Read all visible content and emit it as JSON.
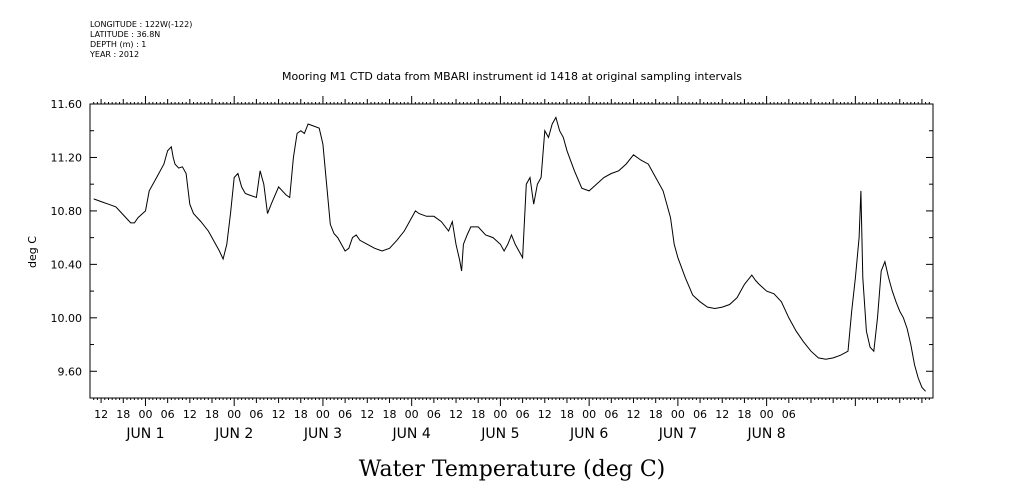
{
  "header": {
    "lines": [
      "LONGITUDE : 122W(-122)",
      "LATITUDE : 36.8N",
      "DEPTH (m) : 1",
      "YEAR : 2012"
    ]
  },
  "chart_data": {
    "type": "line",
    "title": "Mooring M1 CTD data from MBARI instrument id 1418 at original sampling intervals",
    "xlabel": "Water Temperature (deg C)",
    "ylabel": "deg C",
    "ylim": [
      9.4,
      11.6
    ],
    "yticks": [
      "11.60",
      "11.20",
      "10.80",
      "10.40",
      "10.00",
      "9.60"
    ],
    "x_hour_labels": [
      "12",
      "18",
      "00",
      "06",
      "12",
      "18",
      "00",
      "06",
      "12",
      "18",
      "00",
      "06",
      "12",
      "18",
      "00",
      "06",
      "12",
      "18",
      "00",
      "06",
      "12",
      "18",
      "00",
      "06",
      "12",
      "18",
      "00",
      "06",
      "12",
      "18",
      "00",
      "06"
    ],
    "x_day_labels": [
      "JUN  1",
      "JUN  2",
      "JUN  3",
      "JUN  4",
      "JUN  5",
      "JUN  6",
      "JUN  7",
      "JUN  8"
    ],
    "x_unit": "hours since JUN 1 00:00",
    "grid": false,
    "series": [
      {
        "values": [
          [
            -14,
            10.89
          ],
          [
            -12,
            10.87
          ],
          [
            -10,
            10.85
          ],
          [
            -8,
            10.83
          ],
          [
            -7,
            10.8
          ],
          [
            -5,
            10.74
          ],
          [
            -4,
            10.71
          ],
          [
            -3,
            10.71
          ],
          [
            -2,
            10.75
          ],
          [
            0,
            10.8
          ],
          [
            1,
            10.95
          ],
          [
            3,
            11.05
          ],
          [
            5,
            11.15
          ],
          [
            6,
            11.25
          ],
          [
            7,
            11.28
          ],
          [
            7.5,
            11.2
          ],
          [
            8,
            11.15
          ],
          [
            9,
            11.12
          ],
          [
            10,
            11.13
          ],
          [
            11,
            11.08
          ],
          [
            12,
            10.85
          ],
          [
            13,
            10.78
          ],
          [
            15,
            10.72
          ],
          [
            17,
            10.65
          ],
          [
            18,
            10.6
          ],
          [
            20,
            10.5
          ],
          [
            21,
            10.44
          ],
          [
            22,
            10.55
          ],
          [
            23,
            10.78
          ],
          [
            24,
            11.05
          ],
          [
            25,
            11.08
          ],
          [
            26,
            10.98
          ],
          [
            27,
            10.93
          ],
          [
            28,
            10.92
          ],
          [
            30,
            10.9
          ],
          [
            31,
            11.1
          ],
          [
            32,
            11.0
          ],
          [
            33,
            10.78
          ],
          [
            34,
            10.85
          ],
          [
            36,
            10.98
          ],
          [
            38,
            10.92
          ],
          [
            39,
            10.9
          ],
          [
            40,
            11.2
          ],
          [
            41,
            11.38
          ],
          [
            42,
            11.4
          ],
          [
            43,
            11.38
          ],
          [
            44,
            11.45
          ],
          [
            45,
            11.44
          ],
          [
            47,
            11.42
          ],
          [
            48,
            11.3
          ],
          [
            49,
            11.0
          ],
          [
            50,
            10.7
          ],
          [
            51,
            10.63
          ],
          [
            52,
            10.6
          ],
          [
            53,
            10.55
          ],
          [
            54,
            10.5
          ],
          [
            55,
            10.52
          ],
          [
            56,
            10.6
          ],
          [
            57,
            10.62
          ],
          [
            58,
            10.58
          ],
          [
            60,
            10.55
          ],
          [
            62,
            10.52
          ],
          [
            64,
            10.5
          ],
          [
            66,
            10.52
          ],
          [
            68,
            10.58
          ],
          [
            70,
            10.65
          ],
          [
            72,
            10.75
          ],
          [
            73,
            10.8
          ],
          [
            74,
            10.78
          ],
          [
            76,
            10.76
          ],
          [
            78,
            10.76
          ],
          [
            80,
            10.72
          ],
          [
            82,
            10.65
          ],
          [
            83,
            10.72
          ],
          [
            84,
            10.55
          ],
          [
            85,
            10.43
          ],
          [
            85.5,
            10.35
          ],
          [
            86,
            10.55
          ],
          [
            87,
            10.62
          ],
          [
            88,
            10.68
          ],
          [
            90,
            10.68
          ],
          [
            92,
            10.62
          ],
          [
            94,
            10.6
          ],
          [
            96,
            10.55
          ],
          [
            97,
            10.5
          ],
          [
            98,
            10.55
          ],
          [
            99,
            10.62
          ],
          [
            100,
            10.55
          ],
          [
            101,
            10.5
          ],
          [
            102,
            10.45
          ],
          [
            103,
            11.0
          ],
          [
            104,
            11.05
          ],
          [
            105,
            10.85
          ],
          [
            106,
            11.0
          ],
          [
            107,
            11.05
          ],
          [
            108,
            11.4
          ],
          [
            109,
            11.35
          ],
          [
            110,
            11.45
          ],
          [
            111,
            11.5
          ],
          [
            112,
            11.4
          ],
          [
            113,
            11.35
          ],
          [
            114,
            11.25
          ],
          [
            116,
            11.1
          ],
          [
            118,
            10.97
          ],
          [
            120,
            10.95
          ],
          [
            122,
            11.0
          ],
          [
            124,
            11.05
          ],
          [
            126,
            11.08
          ],
          [
            128,
            11.1
          ],
          [
            130,
            11.15
          ],
          [
            132,
            11.22
          ],
          [
            134,
            11.18
          ],
          [
            136,
            11.15
          ],
          [
            138,
            11.05
          ],
          [
            140,
            10.95
          ],
          [
            142,
            10.75
          ],
          [
            143,
            10.55
          ],
          [
            144,
            10.45
          ],
          [
            146,
            10.3
          ],
          [
            148,
            10.17
          ],
          [
            150,
            10.12
          ],
          [
            152,
            10.08
          ],
          [
            154,
            10.07
          ],
          [
            156,
            10.08
          ],
          [
            158,
            10.1
          ],
          [
            160,
            10.15
          ],
          [
            162,
            10.25
          ],
          [
            164,
            10.32
          ],
          [
            165,
            10.28
          ],
          [
            166,
            10.25
          ],
          [
            168,
            10.2
          ],
          [
            170,
            10.18
          ],
          [
            172,
            10.12
          ],
          [
            174,
            10.0
          ],
          [
            176,
            9.9
          ],
          [
            178,
            9.82
          ],
          [
            180,
            9.75
          ],
          [
            182,
            9.7
          ],
          [
            184,
            9.69
          ],
          [
            186,
            9.7
          ],
          [
            188,
            9.72
          ],
          [
            190,
            9.75
          ],
          [
            191,
            10.05
          ],
          [
            192,
            10.3
          ],
          [
            193,
            10.6
          ],
          [
            193.5,
            10.95
          ],
          [
            194,
            10.3
          ],
          [
            195,
            9.9
          ],
          [
            196,
            9.78
          ],
          [
            197,
            9.75
          ],
          [
            198,
            10.0
          ],
          [
            199,
            10.35
          ],
          [
            200,
            10.42
          ],
          [
            201,
            10.3
          ],
          [
            202,
            10.2
          ],
          [
            203,
            10.12
          ],
          [
            204,
            10.05
          ],
          [
            205,
            10.0
          ],
          [
            206,
            9.92
          ],
          [
            207,
            9.8
          ],
          [
            208,
            9.65
          ],
          [
            209,
            9.55
          ],
          [
            210,
            9.48
          ],
          [
            211,
            9.45
          ]
        ]
      }
    ]
  }
}
